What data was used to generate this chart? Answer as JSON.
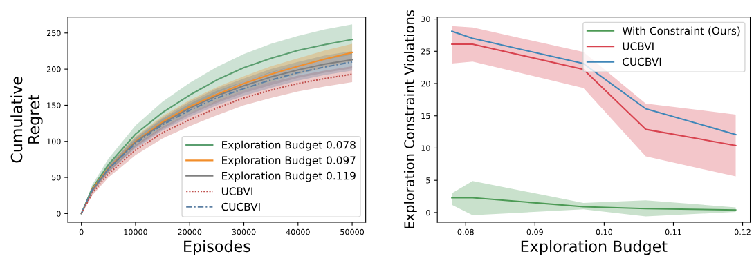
{
  "chart_data": [
    {
      "type": "line",
      "xlabel": "Episodes",
      "ylabel": "Cumulative\nRegret",
      "legend": "lower right",
      "grid": false,
      "x": [
        0,
        2000,
        5000,
        10000,
        15000,
        20000,
        25000,
        30000,
        35000,
        40000,
        45000,
        50000
      ],
      "xlim": [
        -2500,
        52500
      ],
      "xticks": [
        0,
        10000,
        20000,
        30000,
        40000,
        50000
      ],
      "ylim": [
        -12,
        272
      ],
      "yticks": [
        0,
        50,
        100,
        150,
        200,
        250
      ],
      "series": [
        {
          "name": "Exploration Budget 0.078",
          "color": "#5a9e6f",
          "line_style": "solid",
          "values": [
            0,
            35,
            68,
            110,
            140,
            164,
            185,
            202,
            215,
            226,
            234,
            241
          ],
          "lower": [
            0,
            30,
            60,
            98,
            125,
            147,
            167,
            183,
            195,
            206,
            213,
            220
          ],
          "upper": [
            0,
            40,
            76,
            122,
            155,
            181,
            203,
            221,
            235,
            246,
            255,
            262
          ]
        },
        {
          "name": "Exploration Budget 0.097",
          "color": "#f28e2b",
          "line_style": "solid",
          "values": [
            null,
            34,
            63,
            100,
            127,
            148,
            165,
            180,
            193,
            204,
            214,
            223
          ],
          "lower": [
            0,
            29,
            57,
            93,
            119,
            139,
            155,
            170,
            182,
            193,
            202,
            211
          ],
          "upper": [
            0,
            35,
            67,
            107,
            135,
            157,
            175,
            190,
            204,
            215,
            226,
            235
          ]
        },
        {
          "name": "Exploration Budget 0.119",
          "color": "#7f7f7f",
          "line_style": "solid",
          "values": [
            0,
            32,
            62,
            99,
            125,
            146,
            163,
            177,
            189,
            199,
            207,
            213
          ],
          "lower": [
            0,
            29,
            57,
            92,
            117,
            137,
            153,
            167,
            178,
            188,
            195,
            201
          ],
          "upper": [
            0,
            35,
            67,
            106,
            133,
            155,
            173,
            187,
            200,
            210,
            219,
            225
          ]
        },
        {
          "name": "UCBVI",
          "color": "#c0504d",
          "line_style": "dotted",
          "values": [
            0,
            28,
            55,
            88,
            112,
            130,
            146,
            160,
            171,
            180,
            187,
            193
          ],
          "lower": [
            0,
            25,
            50,
            81,
            104,
            121,
            136,
            150,
            160,
            169,
            176,
            182
          ],
          "upper": [
            0,
            31,
            60,
            95,
            120,
            139,
            156,
            170,
            182,
            191,
            198,
            204
          ]
        },
        {
          "name": "CUCBVI",
          "color": "#5b7fa3",
          "line_style": "dashdot",
          "values": [
            0,
            33,
            62,
            97,
            123,
            143,
            160,
            173,
            185,
            195,
            203,
            210
          ],
          "lower": [
            0,
            30,
            57,
            90,
            115,
            134,
            150,
            163,
            174,
            184,
            192,
            198
          ],
          "upper": [
            0,
            36,
            67,
            104,
            131,
            152,
            170,
            183,
            196,
            206,
            214,
            222
          ]
        }
      ]
    },
    {
      "type": "line",
      "xlabel": "Exploration Budget",
      "ylabel": "Exploration Constraint Violations",
      "legend": "upper right",
      "grid": false,
      "x": [
        0.078,
        0.081,
        0.097,
        0.106,
        0.119
      ],
      "xlim": [
        0.0759,
        0.1211
      ],
      "xticks": [
        0.08,
        0.09,
        {
          "value": 0.1,
          "label": "0.10"
        },
        0.11,
        0.12
      ],
      "ylim": [
        -1.5,
        30.3
      ],
      "yticks": [
        0,
        5,
        10,
        15,
        20,
        25,
        30
      ],
      "series": [
        {
          "name": "With Constraint (Ours)",
          "color": "#4c9a55",
          "values": [
            2.3,
            2.3,
            0.9,
            0.6,
            0.4
          ],
          "lower": [
            1.2,
            -0.4,
            0.5,
            -0.6,
            0.1
          ],
          "upper": [
            3.0,
            4.9,
            1.5,
            1.9,
            0.8
          ]
        },
        {
          "name": "UCBVI",
          "color": "#d8434f",
          "values": [
            26.1,
            26.1,
            22.2,
            12.9,
            10.4
          ],
          "lower": [
            23.1,
            23.4,
            19.3,
            8.7,
            5.6
          ],
          "upper": [
            28.9,
            28.7,
            24.9,
            16.9,
            15.2
          ]
        },
        {
          "name": "CUCBVI",
          "color": "#3f86b8",
          "values": [
            28.1,
            27.0,
            23.1,
            16.1,
            12.1
          ]
        }
      ]
    }
  ]
}
